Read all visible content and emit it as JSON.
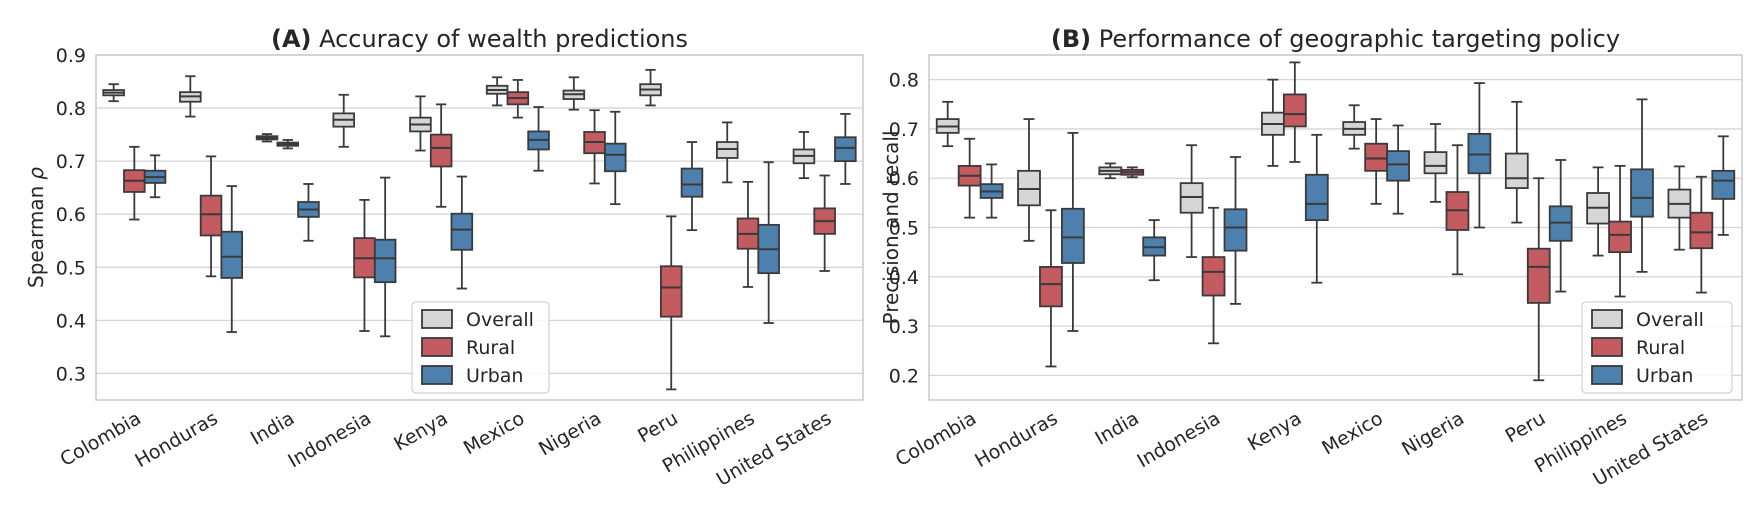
{
  "colors": {
    "Overall": "#d6d6d6",
    "Rural": "#c45b60",
    "Urban": "#4d80ad"
  },
  "legend": {
    "Overall": "Overall",
    "Rural": "Rural",
    "Urban": "Urban"
  },
  "chart_data": [
    {
      "id": "A",
      "type": "boxplot",
      "title_letter": "(A)",
      "title_text": " Accuracy of wealth predictions",
      "ylabel": "Spearman",
      "ylabel_symbol": "ρ",
      "ylim": [
        0.25,
        0.9
      ],
      "yticks": [
        0.3,
        0.4,
        0.5,
        0.6,
        0.7,
        0.8,
        0.9
      ],
      "ytick_labels": [
        "0.3",
        "0.4",
        "0.5",
        "0.6",
        "0.7",
        "0.8",
        "0.9"
      ],
      "legend_position": "bottom-right",
      "categories": [
        "Colombia",
        "Honduras",
        "India",
        "Indonesia",
        "Kenya",
        "Mexico",
        "Nigeria",
        "Peru",
        "Philippines",
        "United States"
      ],
      "series": [
        {
          "name": "Overall",
          "boxes": [
            {
              "wlo": 0.813,
              "q1": 0.824,
              "med": 0.829,
              "q3": 0.834,
              "whi": 0.845
            },
            {
              "wlo": 0.784,
              "q1": 0.812,
              "med": 0.822,
              "q3": 0.83,
              "whi": 0.86
            },
            {
              "wlo": 0.737,
              "q1": 0.741,
              "med": 0.744,
              "q3": 0.747,
              "whi": 0.751
            },
            {
              "wlo": 0.727,
              "q1": 0.765,
              "med": 0.778,
              "q3": 0.79,
              "whi": 0.825
            },
            {
              "wlo": 0.72,
              "q1": 0.756,
              "med": 0.769,
              "q3": 0.782,
              "whi": 0.822
            },
            {
              "wlo": 0.805,
              "q1": 0.827,
              "med": 0.834,
              "q3": 0.842,
              "whi": 0.858
            },
            {
              "wlo": 0.797,
              "q1": 0.817,
              "med": 0.826,
              "q3": 0.833,
              "whi": 0.858
            },
            {
              "wlo": 0.805,
              "q1": 0.824,
              "med": 0.835,
              "q3": 0.845,
              "whi": 0.872
            },
            {
              "wlo": 0.66,
              "q1": 0.706,
              "med": 0.723,
              "q3": 0.736,
              "whi": 0.773
            },
            {
              "wlo": 0.668,
              "q1": 0.696,
              "med": 0.71,
              "q3": 0.722,
              "whi": 0.755
            }
          ]
        },
        {
          "name": "Rural",
          "boxes": [
            {
              "wlo": 0.59,
              "q1": 0.642,
              "med": 0.663,
              "q3": 0.683,
              "whi": 0.727
            },
            {
              "wlo": 0.483,
              "q1": 0.56,
              "med": 0.6,
              "q3": 0.635,
              "whi": 0.709
            },
            null,
            {
              "wlo": 0.38,
              "q1": 0.481,
              "med": 0.517,
              "q3": 0.555,
              "whi": 0.627
            },
            {
              "wlo": 0.614,
              "q1": 0.69,
              "med": 0.725,
              "q3": 0.75,
              "whi": 0.807
            },
            {
              "wlo": 0.782,
              "q1": 0.807,
              "med": 0.819,
              "q3": 0.83,
              "whi": 0.853
            },
            {
              "wlo": 0.658,
              "q1": 0.715,
              "med": 0.736,
              "q3": 0.755,
              "whi": 0.796
            },
            {
              "wlo": 0.27,
              "q1": 0.407,
              "med": 0.462,
              "q3": 0.502,
              "whi": 0.596
            },
            {
              "wlo": 0.463,
              "q1": 0.535,
              "med": 0.563,
              "q3": 0.592,
              "whi": 0.661
            },
            {
              "wlo": 0.493,
              "q1": 0.563,
              "med": 0.587,
              "q3": 0.611,
              "whi": 0.673
            }
          ]
        },
        {
          "name": "Urban",
          "boxes": [
            {
              "wlo": 0.632,
              "q1": 0.659,
              "med": 0.67,
              "q3": 0.682,
              "whi": 0.711
            },
            {
              "wlo": 0.378,
              "q1": 0.48,
              "med": 0.52,
              "q3": 0.567,
              "whi": 0.653
            },
            {
              "wlo": 0.55,
              "q1": 0.595,
              "med": 0.609,
              "q3": 0.623,
              "whi": 0.657
            },
            {
              "wlo": 0.37,
              "q1": 0.472,
              "med": 0.517,
              "q3": 0.552,
              "whi": 0.669
            },
            {
              "wlo": 0.46,
              "q1": 0.533,
              "med": 0.571,
              "q3": 0.601,
              "whi": 0.671
            },
            {
              "wlo": 0.682,
              "q1": 0.722,
              "med": 0.74,
              "q3": 0.756,
              "whi": 0.802
            },
            {
              "wlo": 0.619,
              "q1": 0.681,
              "med": 0.712,
              "q3": 0.733,
              "whi": 0.793
            },
            {
              "wlo": 0.57,
              "q1": 0.633,
              "med": 0.656,
              "q3": 0.686,
              "whi": 0.736
            },
            {
              "wlo": 0.395,
              "q1": 0.489,
              "med": 0.534,
              "q3": 0.58,
              "whi": 0.698
            },
            {
              "wlo": 0.657,
              "q1": 0.7,
              "med": 0.725,
              "q3": 0.745,
              "whi": 0.789
            }
          ]
        }
      ],
      "overlays": [
        {
          "category": 2,
          "name": "Rural",
          "box": {
            "wlo": 0.724,
            "q1": 0.729,
            "med": 0.732,
            "q3": 0.735,
            "whi": 0.74
          }
        }
      ]
    },
    {
      "id": "B",
      "type": "boxplot",
      "title_letter": "(B)",
      "title_text": " Performance of geographic targeting policy",
      "ylabel": "Precision and recall",
      "ylabel_symbol": "",
      "ylim": [
        0.15,
        0.85
      ],
      "yticks": [
        0.2,
        0.3,
        0.4,
        0.5,
        0.6,
        0.7,
        0.8
      ],
      "ytick_labels": [
        "0.2",
        "0.3",
        "0.4",
        "0.5",
        "0.6",
        "0.7",
        "0.8"
      ],
      "legend_position": "bottom-right",
      "categories": [
        "Colombia",
        "Honduras",
        "India",
        "Indonesia",
        "Kenya",
        "Mexico",
        "Nigeria",
        "Peru",
        "Philippines",
        "United States"
      ],
      "series": [
        {
          "name": "Overall",
          "boxes": [
            {
              "wlo": 0.665,
              "q1": 0.692,
              "med": 0.705,
              "q3": 0.72,
              "whi": 0.755
            },
            {
              "wlo": 0.473,
              "q1": 0.545,
              "med": 0.578,
              "q3": 0.615,
              "whi": 0.72
            },
            {
              "wlo": 0.6,
              "q1": 0.608,
              "med": 0.615,
              "q3": 0.622,
              "whi": 0.63
            },
            {
              "wlo": 0.44,
              "q1": 0.53,
              "med": 0.562,
              "q3": 0.59,
              "whi": 0.667
            },
            {
              "wlo": 0.625,
              "q1": 0.688,
              "med": 0.71,
              "q3": 0.733,
              "whi": 0.8
            },
            {
              "wlo": 0.66,
              "q1": 0.688,
              "med": 0.7,
              "q3": 0.714,
              "whi": 0.748
            },
            {
              "wlo": 0.552,
              "q1": 0.61,
              "med": 0.625,
              "q3": 0.653,
              "whi": 0.71
            },
            {
              "wlo": 0.51,
              "q1": 0.58,
              "med": 0.6,
              "q3": 0.65,
              "whi": 0.755
            },
            {
              "wlo": 0.443,
              "q1": 0.508,
              "med": 0.54,
              "q3": 0.57,
              "whi": 0.622
            },
            {
              "wlo": 0.455,
              "q1": 0.52,
              "med": 0.548,
              "q3": 0.577,
              "whi": 0.624
            }
          ]
        },
        {
          "name": "Rural",
          "boxes": [
            {
              "wlo": 0.52,
              "q1": 0.585,
              "med": 0.605,
              "q3": 0.625,
              "whi": 0.68
            },
            {
              "wlo": 0.218,
              "q1": 0.34,
              "med": 0.385,
              "q3": 0.42,
              "whi": 0.535
            },
            null,
            {
              "wlo": 0.265,
              "q1": 0.362,
              "med": 0.41,
              "q3": 0.44,
              "whi": 0.54
            },
            {
              "wlo": 0.633,
              "q1": 0.705,
              "med": 0.73,
              "q3": 0.77,
              "whi": 0.835
            },
            {
              "wlo": 0.548,
              "q1": 0.615,
              "med": 0.64,
              "q3": 0.67,
              "whi": 0.72
            },
            {
              "wlo": 0.405,
              "q1": 0.495,
              "med": 0.535,
              "q3": 0.572,
              "whi": 0.667
            },
            {
              "wlo": 0.19,
              "q1": 0.347,
              "med": 0.42,
              "q3": 0.457,
              "whi": 0.6
            },
            {
              "wlo": 0.36,
              "q1": 0.45,
              "med": 0.485,
              "q3": 0.512,
              "whi": 0.625
            },
            {
              "wlo": 0.368,
              "q1": 0.458,
              "med": 0.49,
              "q3": 0.53,
              "whi": 0.603
            }
          ]
        },
        {
          "name": "Urban",
          "boxes": [
            {
              "wlo": 0.52,
              "q1": 0.56,
              "med": 0.573,
              "q3": 0.588,
              "whi": 0.628
            },
            {
              "wlo": 0.29,
              "q1": 0.428,
              "med": 0.48,
              "q3": 0.538,
              "whi": 0.692
            },
            {
              "wlo": 0.393,
              "q1": 0.443,
              "med": 0.46,
              "q3": 0.48,
              "whi": 0.515
            },
            {
              "wlo": 0.345,
              "q1": 0.453,
              "med": 0.5,
              "q3": 0.537,
              "whi": 0.643
            },
            {
              "wlo": 0.388,
              "q1": 0.515,
              "med": 0.548,
              "q3": 0.607,
              "whi": 0.688
            },
            {
              "wlo": 0.528,
              "q1": 0.595,
              "med": 0.628,
              "q3": 0.655,
              "whi": 0.707
            },
            {
              "wlo": 0.5,
              "q1": 0.61,
              "med": 0.648,
              "q3": 0.69,
              "whi": 0.793
            },
            {
              "wlo": 0.37,
              "q1": 0.473,
              "med": 0.51,
              "q3": 0.543,
              "whi": 0.637
            },
            {
              "wlo": 0.41,
              "q1": 0.522,
              "med": 0.56,
              "q3": 0.618,
              "whi": 0.76
            },
            {
              "wlo": 0.485,
              "q1": 0.558,
              "med": 0.595,
              "q3": 0.615,
              "whi": 0.685
            }
          ]
        }
      ],
      "overlays": [
        {
          "category": 2,
          "name": "Rural",
          "box": {
            "wlo": 0.602,
            "q1": 0.607,
            "med": 0.612,
            "q3": 0.617,
            "whi": 0.622
          }
        }
      ]
    }
  ]
}
